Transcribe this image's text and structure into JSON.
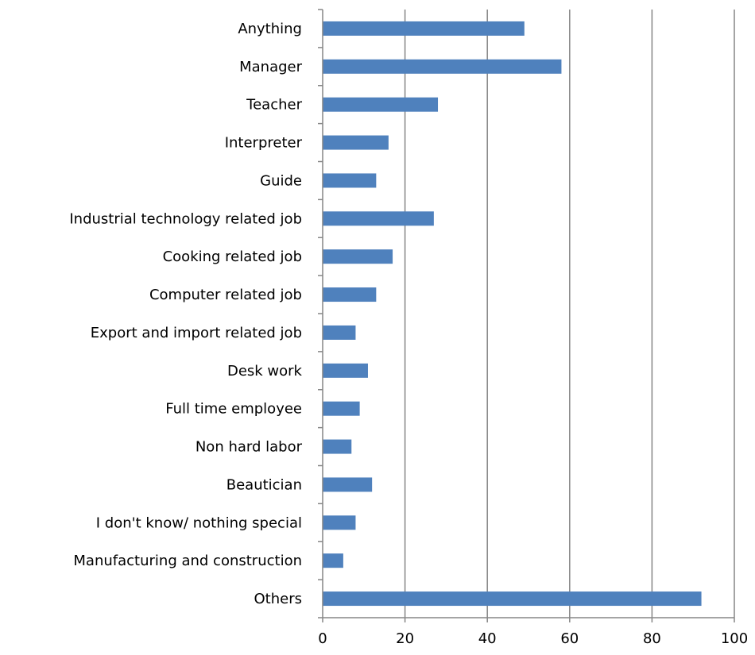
{
  "chart_data": {
    "type": "bar",
    "orientation": "horizontal",
    "categories": [
      "Anything",
      "Manager",
      "Teacher",
      "Interpreter",
      "Guide",
      "Industrial technology related job",
      "Cooking related job",
      "Computer related job",
      "Export and import related job",
      "Desk work",
      "Full time employee",
      "Non hard labor",
      "Beautician",
      "I don't know/ nothing special",
      "Manufacturing and construction",
      "Others"
    ],
    "series": [
      {
        "values": [
          49,
          58,
          28,
          16,
          13,
          27,
          17,
          13,
          8,
          11,
          9,
          7,
          12,
          8,
          5,
          92
        ],
        "color": "#4f81bd"
      }
    ],
    "xlim": [
      0,
      100
    ],
    "x_ticks": [
      "0",
      "20",
      "40",
      "60",
      "80",
      "100"
    ],
    "title": "",
    "xlabel": "",
    "ylabel": "",
    "grid": "vertical",
    "legend": "none",
    "colors": {
      "bar": "#4f81bd",
      "gridline": "#868686",
      "axis": "#868686",
      "text": "#000000"
    }
  }
}
